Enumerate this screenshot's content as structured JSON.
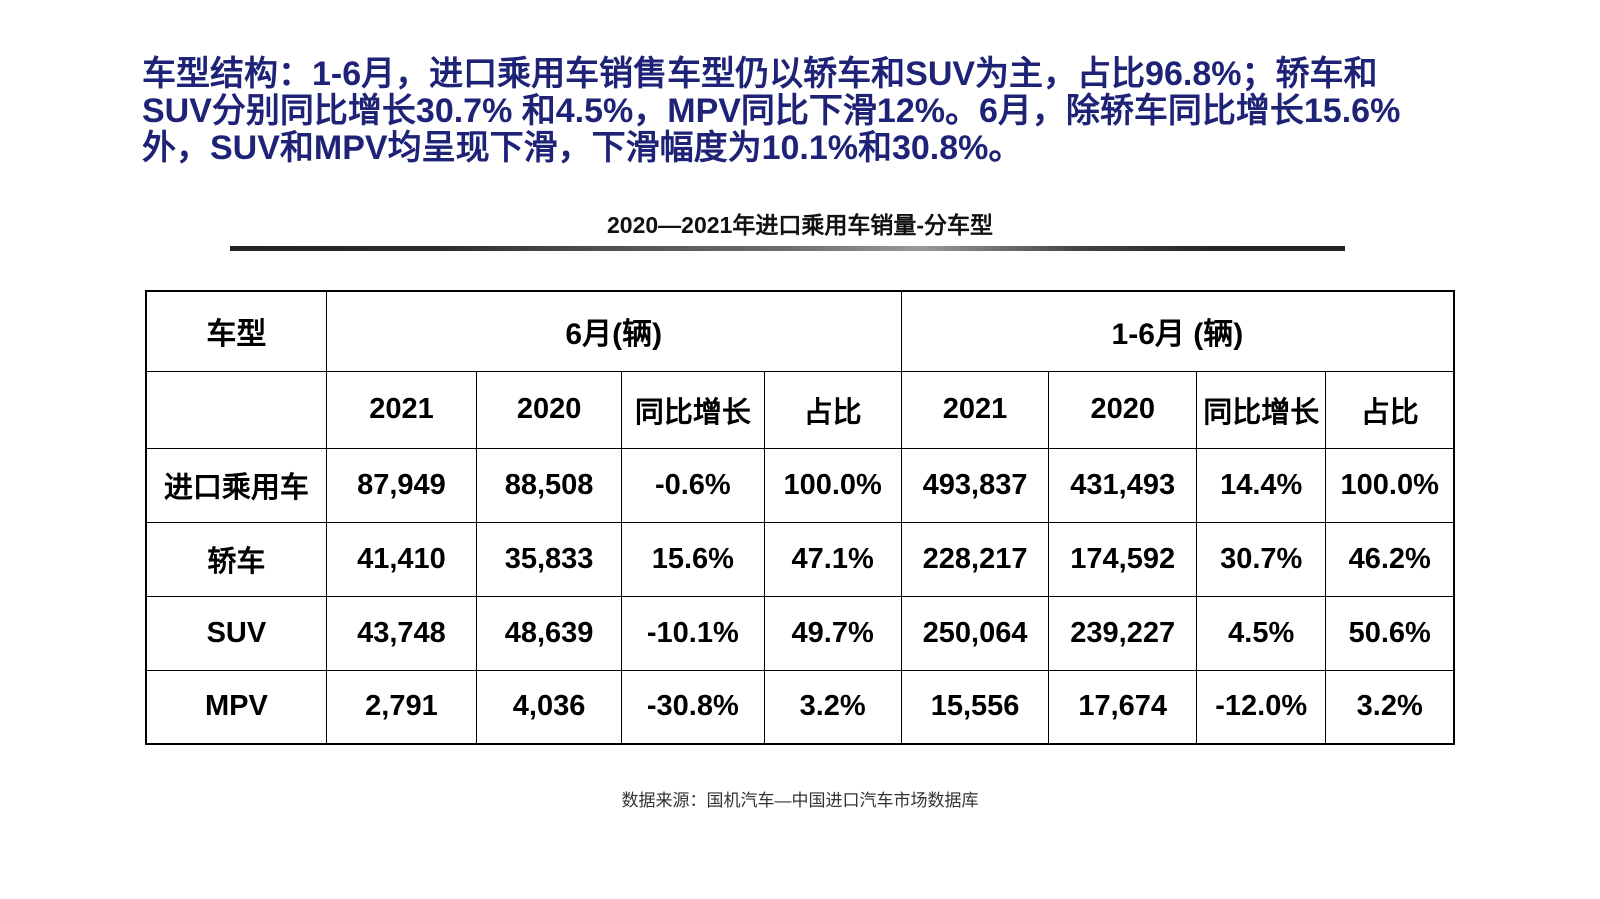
{
  "headline": {
    "color": "#1f2377",
    "full_text": "车型结构：1-6月，进口乘用车销售车型仍以轿车和SUV为主，占比96.8%；轿车和SUV分别同比增长30.7% 和4.5%，MPV同比下滑12%。6月，除轿车同比增长15.6%外，SUV和MPV均呈现下滑，下滑幅度为10.1%和30.8%。",
    "lines": [
      "车型结构：1-6月，进口乘用车销售车型仍以轿车和SUV为主，占比96.8%；轿车和",
      "SUV分别同比增长30.7% 和4.5%，MPV同比下滑12%。6月，除轿车同比增长15.6%",
      "外，SUV和MPV均呈现下滑，下滑幅度为10.1%和30.8%。"
    ]
  },
  "table": {
    "title": "2020—2021年进口乘用车销量-分车型",
    "vehicle_type_header": "车型",
    "group_headers": [
      "6月(辆)",
      "1-6月 (辆)"
    ],
    "sub_headers": [
      "2021",
      "2020",
      "同比增长",
      "占比",
      "2021",
      "2020",
      "同比增长",
      "占比"
    ],
    "rows": [
      {
        "label": "进口乘用车",
        "cells": [
          "87,949",
          "88,508",
          "-0.6%",
          "100.0%",
          "493,837",
          "431,493",
          "14.4%",
          "100.0%"
        ]
      },
      {
        "label": "轿车",
        "cells": [
          "41,410",
          "35,833",
          "15.6%",
          "47.1%",
          "228,217",
          "174,592",
          "30.7%",
          "46.2%"
        ]
      },
      {
        "label": "SUV",
        "cells": [
          "43,748",
          "48,639",
          "-10.1%",
          "49.7%",
          "250,064",
          "239,227",
          "4.5%",
          "50.6%"
        ]
      },
      {
        "label": "MPV",
        "cells": [
          "2,791",
          "4,036",
          "-30.8%",
          "3.2%",
          "15,556",
          "17,674",
          "-12.0%",
          "3.2%"
        ]
      }
    ]
  },
  "source": {
    "text": "数据来源：国机汽车—中国进口汽车市场数据库"
  }
}
